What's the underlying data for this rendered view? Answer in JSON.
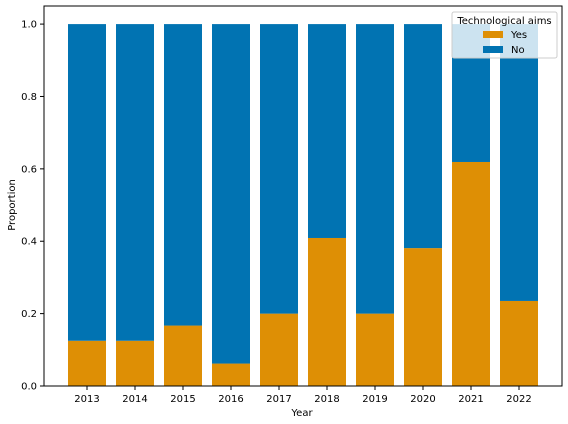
{
  "chart_data": {
    "type": "bar",
    "stacked": true,
    "normalized": true,
    "categories": [
      "2013",
      "2014",
      "2015",
      "2016",
      "2017",
      "2018",
      "2019",
      "2020",
      "2021",
      "2022"
    ],
    "series": [
      {
        "name": "Yes",
        "color": "#de8f05",
        "values": [
          0.125,
          0.125,
          0.167,
          0.062,
          0.2,
          0.409,
          0.2,
          0.381,
          0.619,
          0.235
        ]
      },
      {
        "name": "No",
        "color": "#0173b2",
        "values": [
          0.875,
          0.875,
          0.833,
          0.938,
          0.8,
          0.591,
          0.8,
          0.619,
          0.381,
          0.765
        ]
      }
    ],
    "title": "",
    "xlabel": "Year",
    "ylabel": "Proportion",
    "ylim": [
      0,
      1.05
    ],
    "yticks": [
      "0.0",
      "0.2",
      "0.4",
      "0.6",
      "0.8",
      "1.0"
    ],
    "grid": false,
    "legend": {
      "title": "Technological aims",
      "placement": "top-right"
    }
  }
}
